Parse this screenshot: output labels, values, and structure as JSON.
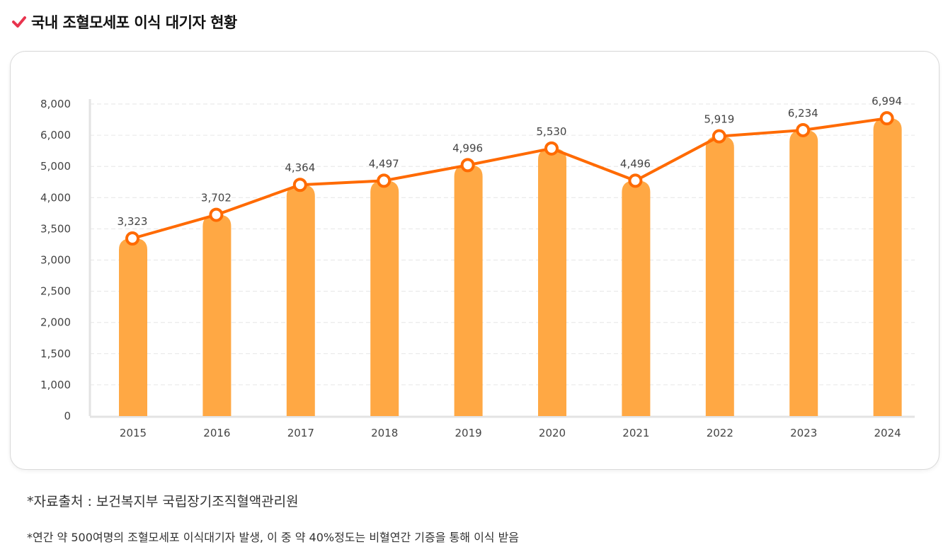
{
  "header": {
    "title": "국내 조혈모세포 이식 대기자 현황",
    "icon": "check-icon"
  },
  "colors": {
    "bar": "#FFA844",
    "line": "#FF6A00",
    "accent": "#E8344E"
  },
  "chart_data": {
    "type": "bar",
    "title": "국내 조혈모세포 이식 대기자 현황",
    "categories": [
      "2015",
      "2016",
      "2017",
      "2018",
      "2019",
      "2020",
      "2021",
      "2022",
      "2023",
      "2024"
    ],
    "series": [
      {
        "name": "bar",
        "values": [
          3323,
          3702,
          4364,
          4497,
          4996,
          5530,
          4496,
          5919,
          6234,
          6994
        ]
      },
      {
        "name": "line",
        "values": [
          3323,
          3702,
          4364,
          4497,
          4996,
          5530,
          4496,
          5919,
          6234,
          6994
        ]
      }
    ],
    "data_labels": [
      "3,323",
      "3,702",
      "4,364",
      "4,497",
      "4,996",
      "5,530",
      "4,496",
      "5,919",
      "6,234",
      "6,994"
    ],
    "y_tick_labels": [
      "0",
      "1,000",
      "1,500",
      "2,000",
      "2,500",
      "3,000",
      "3,500",
      "4,000",
      "5,000",
      "6,000",
      "8,000"
    ],
    "xlabel": "",
    "ylabel": "",
    "grid": true
  },
  "notes": {
    "source": "*자료출처 : 보건복지부 국립장기조직혈액관리원",
    "remark": "*연간 약 500여명의 조혈모세포 이식대기자 발생, 이 중 약 40%정도는 비혈연간 기증을 통해 이식 받음"
  }
}
